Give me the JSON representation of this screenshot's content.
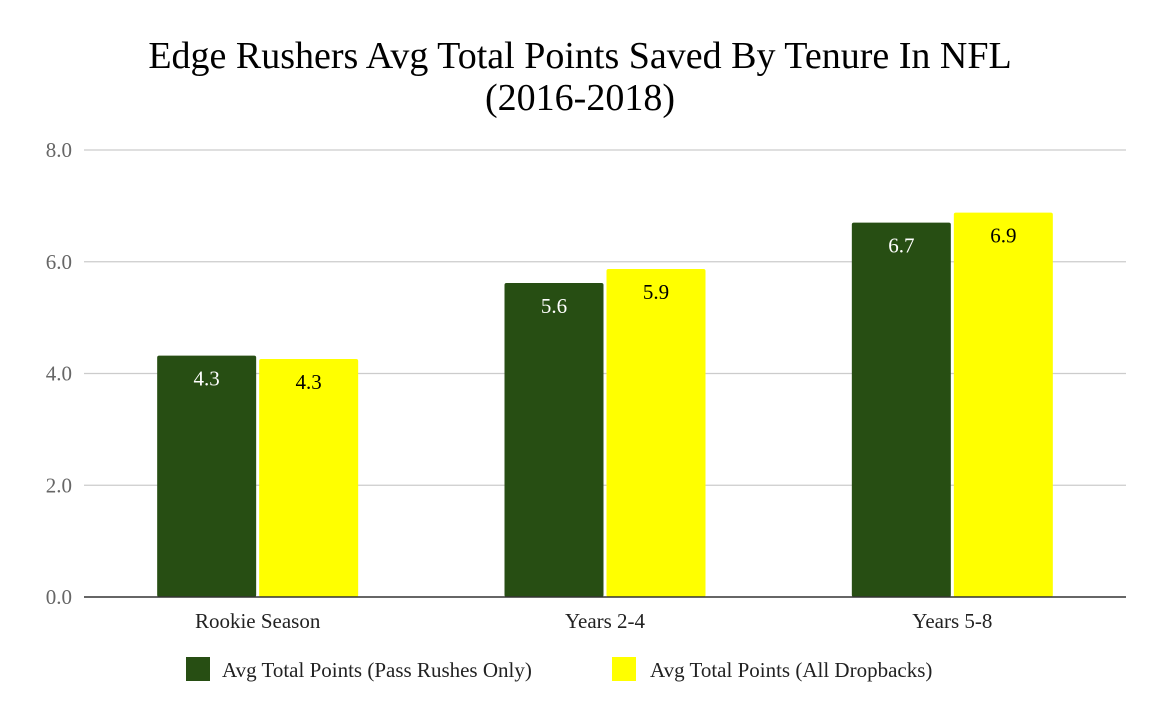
{
  "chart_data": {
    "type": "bar",
    "title_lines": [
      "Edge Rushers Avg Total Points Saved By Tenure In NFL",
      "(2016-2018)"
    ],
    "xlabel": "",
    "ylabel": "",
    "categories": [
      "Rookie Season",
      "Years 2-4",
      "Years 5-8"
    ],
    "series": [
      {
        "name": "Avg Total Points (Pass Rushes Only)",
        "values": [
          4.32,
          5.62,
          6.7
        ],
        "labels": [
          "4.3",
          "5.6",
          "6.7"
        ],
        "color": "#274e13",
        "label_color": "#ffffff"
      },
      {
        "name": "Avg Total Points (All Dropbacks)",
        "values": [
          4.26,
          5.87,
          6.88
        ],
        "labels": [
          "4.3",
          "5.9",
          "6.9"
        ],
        "color": "#ffff00",
        "label_color": "#000000"
      }
    ],
    "ylim": [
      0,
      8
    ],
    "yticks": [
      "0.0",
      "2.0",
      "4.0",
      "6.0",
      "8.0"
    ],
    "grid": true,
    "legend_position": "bottom"
  }
}
